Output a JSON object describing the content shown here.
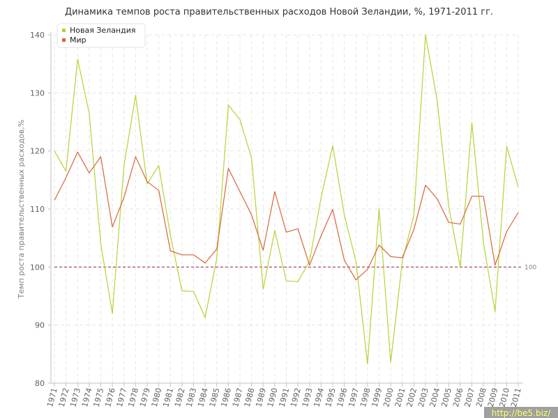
{
  "chart_data": {
    "type": "line",
    "title": "Динамика темпов роста правительственных расходов Новой Зеландии, %, 1971-2011 гг.",
    "ylabel": "Темп роста правительственных расходов,%",
    "xlabel": "",
    "ylim": [
      80,
      140
    ],
    "yticks": [
      80,
      90,
      100,
      110,
      120,
      130,
      140
    ],
    "grid": true,
    "legend_position": "top-left",
    "x": [
      "1971",
      "1972",
      "1973",
      "1974",
      "1975",
      "1976",
      "1977",
      "1978",
      "1979",
      "1980",
      "1981",
      "1982",
      "1983",
      "1984",
      "1985",
      "1986",
      "1987",
      "1988",
      "1989",
      "1990",
      "1991",
      "1992",
      "1993",
      "1994",
      "1995",
      "1996",
      "1997",
      "1998",
      "1999",
      "2000",
      "2001",
      "2002",
      "2003",
      "2004",
      "2005",
      "2006",
      "2007",
      "2008",
      "2009",
      "2010",
      "2011"
    ],
    "series": [
      {
        "name": "Новая Зеландия",
        "color": "#b5d334",
        "values": [
          120.0,
          116.5,
          135.8,
          126.5,
          104.0,
          92.0,
          117.5,
          129.6,
          114.3,
          117.5,
          105.5,
          95.9,
          95.8,
          91.3,
          101.5,
          127.9,
          125.4,
          118.8,
          96.2,
          106.3,
          97.6,
          97.5,
          101.0,
          112.0,
          120.9,
          109.0,
          101.0,
          83.3,
          110.1,
          83.6,
          101.0,
          109.0,
          140.0,
          128.8,
          110.5,
          100.0,
          124.9,
          104.2,
          92.3,
          120.8,
          113.8
        ]
      },
      {
        "name": "Мир",
        "color": "#d9643a",
        "values": [
          111.5,
          115.4,
          119.8,
          116.2,
          119.0,
          106.9,
          112.0,
          119.0,
          114.7,
          113.2,
          102.8,
          102.1,
          102.1,
          100.7,
          103.1,
          117.0,
          113.0,
          109.0,
          102.9,
          113.0,
          106.0,
          106.6,
          100.3,
          105.4,
          109.9,
          101.2,
          97.8,
          99.6,
          103.8,
          101.8,
          101.6,
          106.5,
          114.1,
          111.8,
          107.7,
          107.4,
          112.2,
          112.2,
          100.3,
          106.1,
          109.4
        ]
      }
    ],
    "reference_line": {
      "value": 100,
      "label": "100",
      "color": "#9c3d5a"
    }
  },
  "watermark": "http://be5.biz/"
}
